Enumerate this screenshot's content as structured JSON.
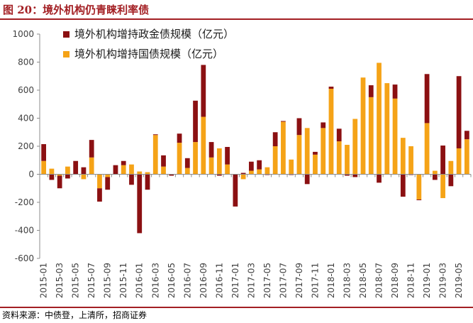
{
  "figure": {
    "title": "图 20：境外机构仍青睐利率债",
    "source": "资料来源：中债登，上清所，招商证券"
  },
  "colors": {
    "series_policy": "#8b1012",
    "series_government": "#f5a317",
    "accent": "#a31f23"
  },
  "chart_data": {
    "type": "bar",
    "stacked": true,
    "title": "",
    "xlabel": "",
    "ylabel": "",
    "ylim": [
      -600,
      1000
    ],
    "yticks": [
      -600,
      -400,
      -200,
      0,
      200,
      400,
      600,
      800,
      1000
    ],
    "grid": false,
    "legend_position": "top-left",
    "categories": [
      "2015-01",
      "2015-02",
      "2015-03",
      "2015-04",
      "2015-05",
      "2015-06",
      "2015-07",
      "2015-08",
      "2015-09",
      "2015-10",
      "2015-11",
      "2015-12",
      "2016-01",
      "2016-02",
      "2016-03",
      "2016-04",
      "2016-05",
      "2016-06",
      "2016-07",
      "2016-08",
      "2016-09",
      "2016-10",
      "2016-11",
      "2016-12",
      "2017-01",
      "2017-02",
      "2017-03",
      "2017-04",
      "2017-05",
      "2017-06",
      "2017-07",
      "2017-08",
      "2017-09",
      "2017-10",
      "2017-11",
      "2017-12",
      "2018-01",
      "2018-02",
      "2018-03",
      "2018-04",
      "2018-05",
      "2018-06",
      "2018-07",
      "2018-08",
      "2018-09",
      "2018-10",
      "2018-11",
      "2018-12",
      "2019-01",
      "2019-02",
      "2019-03",
      "2019-04",
      "2019-05",
      "2019-06"
    ],
    "tick_labels": [
      "2015-01",
      "2015-03",
      "2015-05",
      "2015-07",
      "2015-09",
      "2015-11",
      "2016-01",
      "2016-03",
      "2016-05",
      "2016-07",
      "2016-09",
      "2016-11",
      "2017-01",
      "2017-03",
      "2017-05",
      "2017-07",
      "2017-09",
      "2017-11",
      "2018-01",
      "2018-03",
      "2018-05",
      "2018-07",
      "2018-09",
      "2018-11",
      "2019-01",
      "2019-03",
      "2019-05"
    ],
    "series": [
      {
        "name": "境外机构增持政金债规模（亿元）",
        "values": [
          120,
          -40,
          -90,
          -30,
          95,
          50,
          125,
          -95,
          -90,
          65,
          30,
          -75,
          -420,
          -110,
          5,
          80,
          -10,
          65,
          70,
          295,
          370,
          110,
          -10,
          125,
          -230,
          10,
          65,
          65,
          -5,
          100,
          5,
          -5,
          120,
          -70,
          20,
          40,
          15,
          90,
          -10,
          -20,
          0,
          85,
          -60,
          0,
          100,
          -160,
          -5,
          -5,
          350,
          -40,
          205,
          -85,
          515,
          60
        ]
      },
      {
        "name": "境外机构增持国债规模（亿元）",
        "values": [
          95,
          40,
          -10,
          55,
          0,
          -35,
          120,
          -100,
          -20,
          0,
          65,
          70,
          20,
          15,
          280,
          55,
          0,
          225,
          45,
          230,
          410,
          120,
          185,
          70,
          0,
          -35,
          25,
          35,
          50,
          200,
          375,
          105,
          280,
          330,
          140,
          330,
          610,
          235,
          210,
          395,
          690,
          550,
          795,
          650,
          540,
          260,
          200,
          -180,
          365,
          25,
          -170,
          95,
          185,
          250
        ]
      }
    ]
  }
}
